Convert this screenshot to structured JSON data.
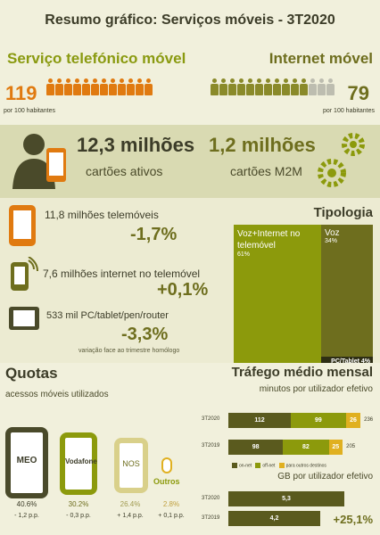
{
  "title": "Resumo gráfico: Serviços móveis -  3T2020",
  "voice": {
    "heading": "Serviço telefónico móvel",
    "value": "119",
    "per": "por 100 habitantes"
  },
  "internet": {
    "heading": "Internet móvel",
    "value": "79",
    "per": "por 100 habitantes"
  },
  "active_cards": {
    "value": "12,3 milhões",
    "label": "cartões ativos"
  },
  "m2m_cards": {
    "value": "1,2 milhões",
    "label": "cartões M2M"
  },
  "devices": [
    {
      "label": "11,8 milhões telemóveis",
      "change": "-1,7%"
    },
    {
      "label": "7,6 milhões internet no telemóvel",
      "change": "+0,1%"
    },
    {
      "label": "533 mil PC/tablet/pen/router",
      "change": "-3,3%",
      "note": "variação face ao trimestre homólogo"
    }
  ],
  "tipologia": {
    "title": "Tipologia",
    "parts": [
      {
        "label": "Voz+Internet no telemóvel",
        "pct": "61%",
        "color": "#8c9a0c"
      },
      {
        "label": "Voz",
        "pct": "34%",
        "color": "#6e6e1e"
      },
      {
        "label": "PC/Tablet",
        "pct": "4%",
        "color": "#2e2e14"
      }
    ]
  },
  "quotas": {
    "title": "Quotas",
    "subtitle": "acessos móveis utilizados",
    "operators": [
      {
        "name": "MEO",
        "share": "40.6%",
        "change": "- 1,2 p.p."
      },
      {
        "name": "Vodafone",
        "share": "30.2%",
        "change": "- 0,3 p.p."
      },
      {
        "name": "NOS",
        "share": "26.4%",
        "change": "+ 1,4 p.p."
      },
      {
        "name": "Outros",
        "share": "2.8%",
        "change": "+ 0,1 p.p."
      }
    ]
  },
  "traffic": {
    "title": "Tráfego médio mensal",
    "minutes_subtitle": "minutos por utilizador efetivo",
    "gb_subtitle": "GB por utilizador efetivo",
    "gb_change": "+25,1%",
    "legend": [
      "on-net",
      "off-net",
      "para outros destinos"
    ]
  },
  "chart_data": [
    {
      "type": "bar",
      "subtitle": "minutos por utilizador efetivo",
      "categories": [
        "3T2020",
        "3T2019"
      ],
      "series": [
        {
          "name": "on-net",
          "values": [
            112,
            98
          ]
        },
        {
          "name": "off-net",
          "values": [
            99,
            82
          ]
        },
        {
          "name": "para outros destinos",
          "values": [
            26,
            25
          ]
        }
      ],
      "totals": [
        236,
        205
      ],
      "colors": {
        "on-net": "#5a5a1e",
        "off-net": "#8c9a0c",
        "para outros destinos": "#e0b020"
      }
    },
    {
      "type": "bar",
      "subtitle": "GB por utilizador efetivo",
      "categories": [
        "3T2020",
        "3T2019"
      ],
      "values": [
        5.3,
        4.2
      ],
      "labels": [
        "5,3",
        "4,2"
      ],
      "color": "#5a5a1e"
    }
  ]
}
